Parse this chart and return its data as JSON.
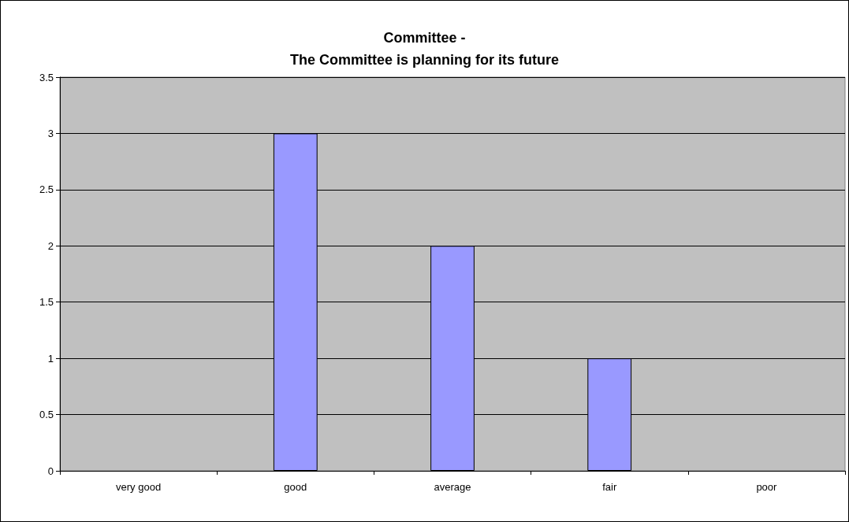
{
  "chart_data": {
    "type": "bar",
    "title": "Committee -\nThe Committee is planning for its future",
    "categories": [
      "very good",
      "good",
      "average",
      "fair",
      "poor"
    ],
    "values": [
      0,
      3,
      2,
      1,
      0
    ],
    "color": "#9999ff",
    "ylim": [
      0,
      3.5
    ],
    "yticks": [
      0,
      0.5,
      1,
      1.5,
      2,
      2.5,
      3,
      3.5
    ],
    "grid": "y"
  }
}
